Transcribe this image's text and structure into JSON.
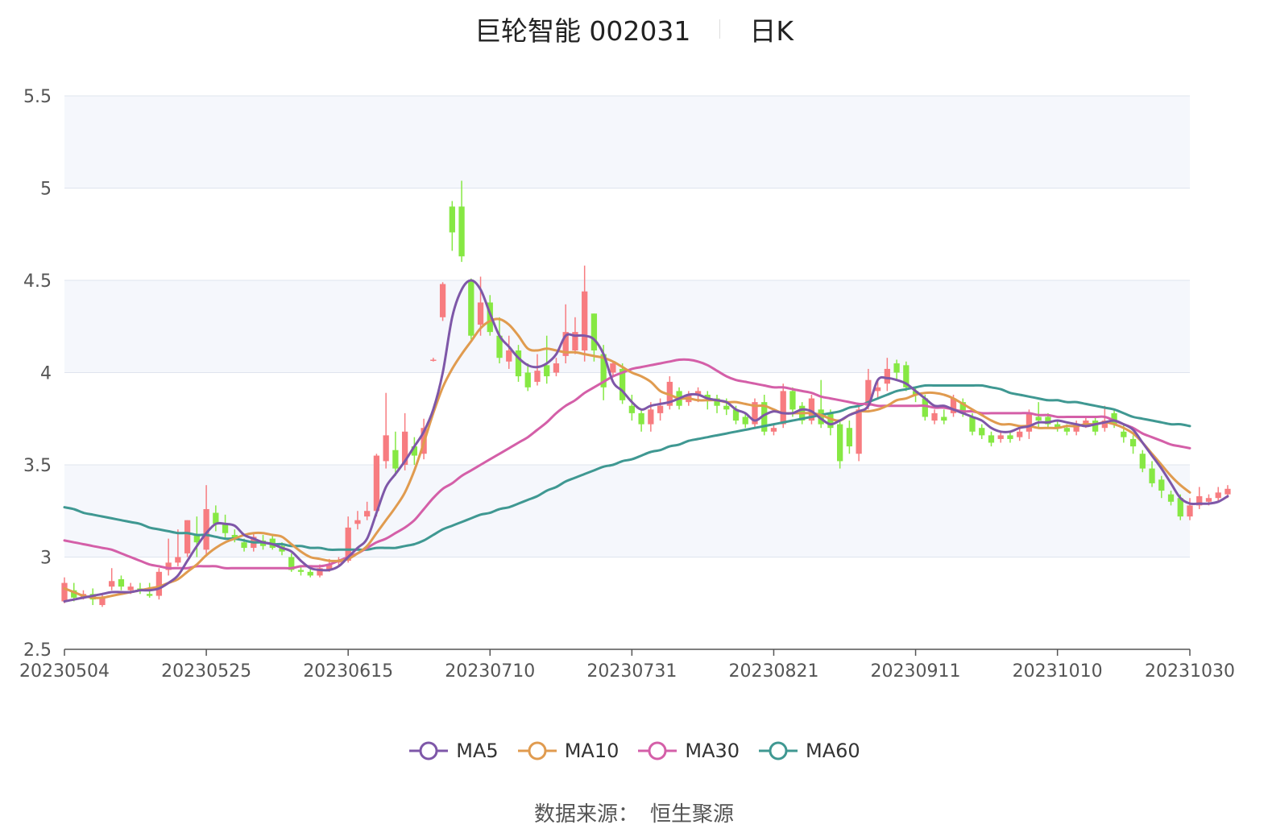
{
  "header": {
    "stock": "巨轮智能 002031",
    "period": "日K"
  },
  "source": {
    "label": "数据来源：",
    "value": "恒生聚源"
  },
  "chart_data": {
    "type": "candlestick",
    "y_axis": {
      "min": 2.5,
      "max": 5.5,
      "ticks": [
        2.5,
        3,
        3.5,
        4,
        4.5,
        5,
        5.5
      ],
      "tick_labels": [
        "2.5",
        "3",
        "3.5",
        "4",
        "4.5",
        "5",
        "5.5"
      ]
    },
    "x_ticks": [
      {
        "label": "20230504",
        "i": 0
      },
      {
        "label": "20230525",
        "i": 15
      },
      {
        "label": "20230615",
        "i": 30
      },
      {
        "label": "20230710",
        "i": 45
      },
      {
        "label": "20230731",
        "i": 60
      },
      {
        "label": "20230821",
        "i": 75
      },
      {
        "label": "20230911",
        "i": 90
      },
      {
        "label": "20231010",
        "i": 105
      },
      {
        "label": "20231030",
        "i": 119
      }
    ],
    "n_points": 120,
    "grid": true,
    "legend_position": "bottom",
    "colors": {
      "up": "#f77c80",
      "down": "#86e843",
      "MA5": "#7e57a8",
      "MA10": "#e09b4f",
      "MA30": "#d45fa8",
      "MA60": "#3f9892",
      "band": "#f5f7fc",
      "grid": "#dfe4ee"
    },
    "candles": [
      [
        2.76,
        2.86,
        2.75,
        2.89
      ],
      [
        2.82,
        2.78,
        2.76,
        2.86
      ],
      [
        2.78,
        2.8,
        2.77,
        2.82
      ],
      [
        2.8,
        2.77,
        2.74,
        2.83
      ],
      [
        2.74,
        2.78,
        2.73,
        2.8
      ],
      [
        2.84,
        2.87,
        2.82,
        2.94
      ],
      [
        2.88,
        2.84,
        2.82,
        2.9
      ],
      [
        2.82,
        2.84,
        2.8,
        2.86
      ],
      [
        2.83,
        2.82,
        2.8,
        2.86
      ],
      [
        2.8,
        2.79,
        2.78,
        2.86
      ],
      [
        2.79,
        2.92,
        2.77,
        2.94
      ],
      [
        2.93,
        2.97,
        2.9,
        3.1
      ],
      [
        2.97,
        3.0,
        2.95,
        3.15
      ],
      [
        3.02,
        3.2,
        3.0,
        3.2
      ],
      [
        3.12,
        3.08,
        3.0,
        3.22
      ],
      [
        3.04,
        3.26,
        3.01,
        3.39
      ],
      [
        3.24,
        3.18,
        3.14,
        3.28
      ],
      [
        3.18,
        3.13,
        3.1,
        3.23
      ],
      [
        3.12,
        3.1,
        3.08,
        3.15
      ],
      [
        3.08,
        3.05,
        3.03,
        3.1
      ],
      [
        3.05,
        3.11,
        3.03,
        3.13
      ],
      [
        3.09,
        3.06,
        3.04,
        3.12
      ],
      [
        3.1,
        3.05,
        3.04,
        3.12
      ],
      [
        3.06,
        3.03,
        3.01,
        3.08
      ],
      [
        3.0,
        2.93,
        2.92,
        3.02
      ],
      [
        2.93,
        2.92,
        2.9,
        2.95
      ],
      [
        2.92,
        2.9,
        2.89,
        2.94
      ],
      [
        2.9,
        2.94,
        2.89,
        2.96
      ],
      [
        2.93,
        2.96,
        2.92,
        2.99
      ],
      [
        2.97,
        2.98,
        2.95,
        3.0
      ],
      [
        2.98,
        3.16,
        2.97,
        3.22
      ],
      [
        3.18,
        3.2,
        3.15,
        3.25
      ],
      [
        3.22,
        3.25,
        3.2,
        3.3
      ],
      [
        3.25,
        3.55,
        3.22,
        3.56
      ],
      [
        3.52,
        3.66,
        3.48,
        3.89
      ],
      [
        3.58,
        3.48,
        3.44,
        3.68
      ],
      [
        3.5,
        3.68,
        3.47,
        3.78
      ],
      [
        3.6,
        3.55,
        3.5,
        3.65
      ],
      [
        3.56,
        3.7,
        3.53,
        3.75
      ],
      [
        4.07,
        4.07,
        4.06,
        4.08
      ],
      [
        4.3,
        4.48,
        4.28,
        4.49
      ],
      [
        4.9,
        4.76,
        4.66,
        4.93
      ],
      [
        4.9,
        4.63,
        4.6,
        5.04
      ],
      [
        4.5,
        4.2,
        4.18,
        4.51
      ],
      [
        4.26,
        4.38,
        4.2,
        4.52
      ],
      [
        4.38,
        4.22,
        4.2,
        4.42
      ],
      [
        4.2,
        4.08,
        4.05,
        4.3
      ],
      [
        4.06,
        4.12,
        4.02,
        4.2
      ],
      [
        4.12,
        3.98,
        3.95,
        4.15
      ],
      [
        4.0,
        3.92,
        3.9,
        4.05
      ],
      [
        3.95,
        4.01,
        3.93,
        4.1
      ],
      [
        4.04,
        3.98,
        3.94,
        4.2
      ],
      [
        4.0,
        4.05,
        3.98,
        4.08
      ],
      [
        4.09,
        4.22,
        4.05,
        4.37
      ],
      [
        4.12,
        4.22,
        4.1,
        4.3
      ],
      [
        4.12,
        4.44,
        4.06,
        4.58
      ],
      [
        4.32,
        4.12,
        4.06,
        4.32
      ],
      [
        4.1,
        3.92,
        3.85,
        4.15
      ],
      [
        4.0,
        4.05,
        3.98,
        4.06
      ],
      [
        4.02,
        3.85,
        3.83,
        4.05
      ],
      [
        3.82,
        3.78,
        3.74,
        3.88
      ],
      [
        3.78,
        3.72,
        3.68,
        3.8
      ],
      [
        3.72,
        3.8,
        3.68,
        3.84
      ],
      [
        3.78,
        3.82,
        3.74,
        3.86
      ],
      [
        3.82,
        3.95,
        3.8,
        3.98
      ],
      [
        3.9,
        3.82,
        3.8,
        3.92
      ],
      [
        3.84,
        3.88,
        3.82,
        3.9
      ],
      [
        3.88,
        3.9,
        3.84,
        3.92
      ],
      [
        3.88,
        3.86,
        3.8,
        3.9
      ],
      [
        3.86,
        3.82,
        3.78,
        3.88
      ],
      [
        3.82,
        3.8,
        3.77,
        3.86
      ],
      [
        3.8,
        3.74,
        3.72,
        3.82
      ],
      [
        3.76,
        3.72,
        3.7,
        3.78
      ],
      [
        3.72,
        3.84,
        3.7,
        3.86
      ],
      [
        3.84,
        3.68,
        3.66,
        3.88
      ],
      [
        3.68,
        3.7,
        3.66,
        3.72
      ],
      [
        3.72,
        3.9,
        3.7,
        3.94
      ],
      [
        3.9,
        3.8,
        3.76,
        3.92
      ],
      [
        3.82,
        3.74,
        3.72,
        3.84
      ],
      [
        3.74,
        3.86,
        3.72,
        3.88
      ],
      [
        3.8,
        3.72,
        3.7,
        3.96
      ],
      [
        3.78,
        3.7,
        3.66,
        3.8
      ],
      [
        3.72,
        3.52,
        3.48,
        3.74
      ],
      [
        3.7,
        3.6,
        3.56,
        3.74
      ],
      [
        3.56,
        3.8,
        3.52,
        3.82
      ],
      [
        3.82,
        3.96,
        3.8,
        4.02
      ],
      [
        3.9,
        3.92,
        3.86,
        3.96
      ],
      [
        3.94,
        4.02,
        3.9,
        4.08
      ],
      [
        4.05,
        4.0,
        3.96,
        4.07
      ],
      [
        4.04,
        3.92,
        3.9,
        4.06
      ],
      [
        3.9,
        3.88,
        3.84,
        3.92
      ],
      [
        3.86,
        3.76,
        3.74,
        3.88
      ],
      [
        3.74,
        3.78,
        3.72,
        3.8
      ],
      [
        3.76,
        3.74,
        3.72,
        3.8
      ],
      [
        3.78,
        3.86,
        3.76,
        3.88
      ],
      [
        3.84,
        3.78,
        3.76,
        3.86
      ],
      [
        3.76,
        3.68,
        3.66,
        3.78
      ],
      [
        3.7,
        3.66,
        3.64,
        3.72
      ],
      [
        3.66,
        3.62,
        3.6,
        3.68
      ],
      [
        3.64,
        3.66,
        3.62,
        3.68
      ],
      [
        3.66,
        3.64,
        3.62,
        3.68
      ],
      [
        3.65,
        3.68,
        3.63,
        3.7
      ],
      [
        3.68,
        3.78,
        3.64,
        3.8
      ],
      [
        3.76,
        3.74,
        3.7,
        3.84
      ],
      [
        3.76,
        3.72,
        3.7,
        3.78
      ],
      [
        3.72,
        3.7,
        3.68,
        3.74
      ],
      [
        3.7,
        3.68,
        3.66,
        3.72
      ],
      [
        3.68,
        3.72,
        3.66,
        3.74
      ],
      [
        3.72,
        3.74,
        3.7,
        3.76
      ],
      [
        3.74,
        3.68,
        3.66,
        3.76
      ],
      [
        3.7,
        3.74,
        3.68,
        3.82
      ],
      [
        3.78,
        3.72,
        3.7,
        3.8
      ],
      [
        3.68,
        3.65,
        3.62,
        3.72
      ],
      [
        3.64,
        3.6,
        3.56,
        3.66
      ],
      [
        3.56,
        3.48,
        3.46,
        3.58
      ],
      [
        3.48,
        3.4,
        3.38,
        3.52
      ],
      [
        3.42,
        3.36,
        3.32,
        3.44
      ],
      [
        3.34,
        3.3,
        3.28,
        3.36
      ],
      [
        3.32,
        3.22,
        3.2,
        3.34
      ],
      [
        3.22,
        3.28,
        3.2,
        3.32
      ],
      [
        3.28,
        3.33,
        3.26,
        3.38
      ],
      [
        3.3,
        3.32,
        3.28,
        3.34
      ],
      [
        3.32,
        3.35,
        3.3,
        3.38
      ],
      [
        3.34,
        3.37,
        3.32,
        3.39
      ]
    ],
    "series": [
      {
        "name": "MA5",
        "values": [
          2.76,
          2.77,
          2.78,
          2.79,
          2.8,
          2.81,
          2.81,
          2.81,
          2.82,
          2.82,
          2.83,
          2.86,
          2.9,
          2.98,
          3.06,
          3.13,
          3.18,
          3.18,
          3.17,
          3.12,
          3.1,
          3.08,
          3.07,
          3.05,
          3.03,
          2.98,
          2.94,
          2.93,
          2.93,
          2.95,
          3.0,
          3.05,
          3.1,
          3.24,
          3.38,
          3.45,
          3.52,
          3.6,
          3.68,
          3.8,
          4.0,
          4.3,
          4.45,
          4.5,
          4.45,
          4.32,
          4.2,
          4.14,
          4.08,
          4.04,
          4.03,
          4.05,
          4.1,
          4.2,
          4.2,
          4.2,
          4.18,
          4.1,
          3.95,
          3.9,
          3.84,
          3.8,
          3.82,
          3.83,
          3.84,
          3.86,
          3.88,
          3.88,
          3.86,
          3.85,
          3.84,
          3.8,
          3.78,
          3.74,
          3.77,
          3.79,
          3.78,
          3.78,
          3.8,
          3.79,
          3.75,
          3.72,
          3.74,
          3.77,
          3.79,
          3.82,
          3.96,
          3.97,
          3.96,
          3.94,
          3.9,
          3.86,
          3.82,
          3.82,
          3.8,
          3.78,
          3.76,
          3.74,
          3.7,
          3.68,
          3.68,
          3.7,
          3.71,
          3.73,
          3.73,
          3.74,
          3.73,
          3.72,
          3.71,
          3.72,
          3.73,
          3.74,
          3.72,
          3.69,
          3.62,
          3.55,
          3.48,
          3.4,
          3.32,
          3.29,
          3.29,
          3.29,
          3.3,
          3.33
        ]
      },
      {
        "name": "MA10",
        "values": [
          2.83,
          2.81,
          2.79,
          2.78,
          2.78,
          2.79,
          2.8,
          2.81,
          2.82,
          2.83,
          2.84,
          2.86,
          2.88,
          2.92,
          2.96,
          3.01,
          3.05,
          3.08,
          3.1,
          3.12,
          3.13,
          3.13,
          3.12,
          3.11,
          3.07,
          3.03,
          3.0,
          2.99,
          2.98,
          2.98,
          2.99,
          3.02,
          3.06,
          3.13,
          3.2,
          3.27,
          3.35,
          3.47,
          3.62,
          3.78,
          3.92,
          4.02,
          4.1,
          4.17,
          4.24,
          4.28,
          4.29,
          4.26,
          4.2,
          4.13,
          4.12,
          4.13,
          4.12,
          4.11,
          4.11,
          4.1,
          4.09,
          4.08,
          4.06,
          4.03,
          4.0,
          3.98,
          3.95,
          3.9,
          3.88,
          3.86,
          3.86,
          3.85,
          3.85,
          3.85,
          3.84,
          3.84,
          3.83,
          3.82,
          3.82,
          3.8,
          3.78,
          3.78,
          3.78,
          3.78,
          3.77,
          3.75,
          3.74,
          3.77,
          3.79,
          3.79,
          3.8,
          3.82,
          3.85,
          3.86,
          3.88,
          3.89,
          3.89,
          3.88,
          3.86,
          3.83,
          3.8,
          3.77,
          3.74,
          3.72,
          3.72,
          3.71,
          3.71,
          3.7,
          3.7,
          3.7,
          3.71,
          3.71,
          3.72,
          3.72,
          3.73,
          3.72,
          3.7,
          3.67,
          3.62,
          3.56,
          3.5,
          3.44,
          3.39,
          3.35
        ]
      },
      {
        "name": "MA30",
        "values": [
          3.09,
          3.08,
          3.07,
          3.06,
          3.05,
          3.04,
          3.02,
          3.0,
          2.98,
          2.96,
          2.95,
          2.94,
          2.94,
          2.94,
          2.95,
          2.95,
          2.95,
          2.94,
          2.94,
          2.94,
          2.94,
          2.94,
          2.94,
          2.94,
          2.94,
          2.95,
          2.95,
          2.95,
          2.96,
          2.98,
          3.0,
          3.02,
          3.05,
          3.08,
          3.1,
          3.13,
          3.16,
          3.2,
          3.26,
          3.32,
          3.37,
          3.4,
          3.44,
          3.47,
          3.5,
          3.53,
          3.56,
          3.59,
          3.62,
          3.65,
          3.69,
          3.73,
          3.78,
          3.82,
          3.85,
          3.89,
          3.92,
          3.95,
          3.98,
          4.0,
          4.02,
          4.03,
          4.04,
          4.05,
          4.06,
          4.07,
          4.07,
          4.06,
          4.04,
          4.01,
          3.98,
          3.96,
          3.95,
          3.94,
          3.93,
          3.92,
          3.92,
          3.91,
          3.9,
          3.89,
          3.87,
          3.86,
          3.85,
          3.84,
          3.83,
          3.83,
          3.82,
          3.82,
          3.82,
          3.82,
          3.82,
          3.82,
          3.81,
          3.81,
          3.8,
          3.79,
          3.79,
          3.78,
          3.78,
          3.78,
          3.78,
          3.78,
          3.78,
          3.77,
          3.77,
          3.76,
          3.76,
          3.76,
          3.76,
          3.76,
          3.76,
          3.74,
          3.72,
          3.7,
          3.67,
          3.65,
          3.63,
          3.61,
          3.6,
          3.59
        ]
      },
      {
        "name": "MA60",
        "values": [
          3.27,
          3.26,
          3.24,
          3.23,
          3.22,
          3.21,
          3.2,
          3.19,
          3.18,
          3.16,
          3.15,
          3.14,
          3.13,
          3.13,
          3.12,
          3.12,
          3.11,
          3.1,
          3.1,
          3.09,
          3.08,
          3.08,
          3.07,
          3.07,
          3.06,
          3.06,
          3.05,
          3.05,
          3.04,
          3.04,
          3.04,
          3.04,
          3.04,
          3.05,
          3.05,
          3.05,
          3.06,
          3.07,
          3.09,
          3.12,
          3.15,
          3.17,
          3.19,
          3.21,
          3.23,
          3.24,
          3.26,
          3.27,
          3.29,
          3.31,
          3.33,
          3.36,
          3.38,
          3.41,
          3.43,
          3.45,
          3.47,
          3.49,
          3.5,
          3.52,
          3.53,
          3.55,
          3.57,
          3.58,
          3.6,
          3.61,
          3.63,
          3.64,
          3.65,
          3.66,
          3.67,
          3.68,
          3.69,
          3.7,
          3.71,
          3.72,
          3.73,
          3.74,
          3.75,
          3.76,
          3.77,
          3.78,
          3.79,
          3.81,
          3.82,
          3.84,
          3.86,
          3.88,
          3.9,
          3.91,
          3.92,
          3.93,
          3.93,
          3.93,
          3.93,
          3.93,
          3.93,
          3.93,
          3.92,
          3.91,
          3.89,
          3.88,
          3.87,
          3.86,
          3.85,
          3.85,
          3.84,
          3.84,
          3.83,
          3.82,
          3.81,
          3.8,
          3.78,
          3.76,
          3.75,
          3.74,
          3.73,
          3.72,
          3.72,
          3.71
        ]
      }
    ]
  }
}
